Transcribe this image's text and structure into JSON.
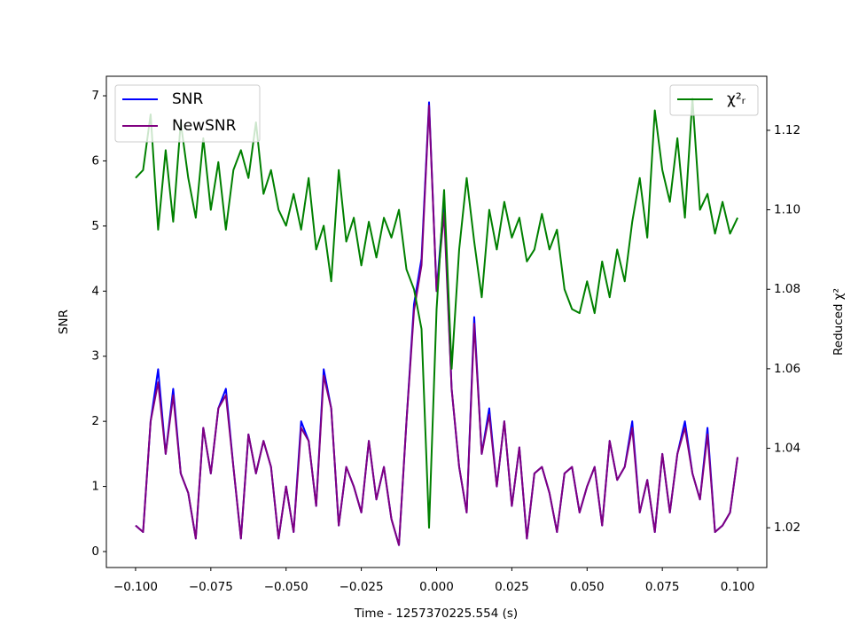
{
  "chart_data": {
    "type": "line",
    "xlabel": "Time - 1257370225.554 (s)",
    "ylabel": "SNR",
    "y2label": "Reduced χ²",
    "xlim": [
      -0.1097,
      0.1097
    ],
    "ylim": [
      -0.245,
      7.3
    ],
    "y2lim": [
      1.01,
      1.1336
    ],
    "xticks": [
      {
        "value": -0.1,
        "label": "−0.100"
      },
      {
        "value": -0.075,
        "label": "−0.075"
      },
      {
        "value": -0.05,
        "label": "−0.050"
      },
      {
        "value": -0.025,
        "label": "−0.025"
      },
      {
        "value": 0,
        "label": "0.000"
      },
      0.025,
      {
        "value": 0.05,
        "label": "0.050"
      },
      0.075,
      {
        "value": 0.1,
        "label": "0.100"
      }
    ],
    "yticks": [
      0,
      1,
      2,
      3,
      4,
      5,
      6,
      7
    ],
    "y2ticks": [
      1.02,
      1.04,
      1.06,
      1.08,
      {
        "value": 1.1,
        "label": "1.10"
      },
      1.12
    ],
    "legend": "upper left",
    "legend2": "upper right",
    "x": [
      -0.1,
      -0.0975,
      -0.095,
      -0.0925,
      -0.09,
      -0.0875,
      -0.085,
      -0.0825,
      -0.08,
      -0.0775,
      -0.075,
      -0.0725,
      -0.07,
      -0.0675,
      -0.065,
      -0.0625,
      -0.06,
      -0.0575,
      -0.055,
      -0.0525,
      -0.05,
      -0.0475,
      -0.045,
      -0.0425,
      -0.04,
      -0.0375,
      -0.035,
      -0.0325,
      -0.03,
      -0.0275,
      -0.025,
      -0.0225,
      -0.02,
      -0.0175,
      -0.015,
      -0.0125,
      -0.01,
      -0.0075,
      -0.005,
      -0.0025,
      0,
      0.0025,
      0.005,
      0.0075,
      0.01,
      0.0125,
      0.015,
      0.0175,
      0.02,
      0.0225,
      0.025,
      0.0275,
      0.03,
      0.0325,
      0.035,
      0.0375,
      0.04,
      0.0425,
      0.045,
      0.0475,
      0.05,
      0.0525,
      0.055,
      0.0575,
      0.06,
      0.0625,
      0.065,
      0.0675,
      0.07,
      0.0725,
      0.075,
      0.0775,
      0.08,
      0.0825,
      0.085,
      0.0875,
      0.09,
      0.0925,
      0.095,
      0.0975,
      0.1
    ],
    "series": [
      {
        "name": "SNR",
        "color": "#0000ff",
        "values": [
          0.4,
          0.3,
          2.0,
          2.8,
          1.5,
          2.5,
          1.2,
          0.9,
          0.2,
          1.9,
          1.2,
          2.2,
          2.5,
          1.3,
          0.2,
          1.8,
          1.2,
          1.7,
          1.3,
          0.2,
          1.0,
          0.3,
          2.0,
          1.7,
          0.7,
          2.8,
          2.2,
          0.4,
          1.3,
          1.0,
          0.6,
          1.7,
          0.8,
          1.3,
          0.5,
          0.1,
          2.0,
          3.8,
          4.5,
          6.9,
          4.0,
          5.4,
          2.5,
          1.3,
          0.6,
          3.6,
          1.5,
          2.2,
          1.0,
          2.0,
          0.7,
          1.6,
          0.2,
          1.2,
          1.3,
          0.9,
          0.3,
          1.2,
          1.3,
          0.6,
          1.0,
          1.3,
          0.4,
          1.7,
          1.1,
          1.3,
          2.0,
          0.6,
          1.1,
          0.3,
          1.5,
          0.6,
          1.5,
          2.0,
          1.2,
          0.8,
          1.9,
          0.3,
          0.4,
          0.6,
          1.45
        ]
      },
      {
        "name": "NewSNR",
        "color": "#800080",
        "values": [
          0.4,
          0.3,
          2.0,
          2.6,
          1.5,
          2.4,
          1.2,
          0.9,
          0.2,
          1.9,
          1.2,
          2.2,
          2.4,
          1.3,
          0.2,
          1.8,
          1.2,
          1.7,
          1.3,
          0.2,
          1.0,
          0.3,
          1.9,
          1.7,
          0.7,
          2.7,
          2.2,
          0.4,
          1.3,
          1.0,
          0.6,
          1.7,
          0.8,
          1.3,
          0.5,
          0.1,
          2.0,
          3.7,
          4.4,
          6.85,
          4.0,
          5.2,
          2.5,
          1.3,
          0.6,
          3.5,
          1.5,
          2.1,
          1.0,
          2.0,
          0.7,
          1.6,
          0.2,
          1.2,
          1.3,
          0.9,
          0.3,
          1.2,
          1.3,
          0.6,
          1.0,
          1.3,
          0.4,
          1.7,
          1.1,
          1.3,
          1.9,
          0.6,
          1.1,
          0.3,
          1.5,
          0.6,
          1.5,
          1.9,
          1.2,
          0.8,
          1.8,
          0.3,
          0.4,
          0.6,
          1.45
        ]
      },
      {
        "name": "χ²ᵣ",
        "color": "#008000",
        "axis": "y2",
        "values": [
          1.108,
          1.11,
          1.124,
          1.095,
          1.115,
          1.097,
          1.122,
          1.108,
          1.098,
          1.118,
          1.1,
          1.112,
          1.095,
          1.11,
          1.115,
          1.108,
          1.122,
          1.104,
          1.11,
          1.1,
          1.096,
          1.104,
          1.095,
          1.108,
          1.09,
          1.096,
          1.082,
          1.11,
          1.092,
          1.098,
          1.086,
          1.097,
          1.088,
          1.098,
          1.093,
          1.1,
          1.085,
          1.08,
          1.07,
          1.02,
          1.075,
          1.105,
          1.06,
          1.09,
          1.108,
          1.092,
          1.078,
          1.1,
          1.09,
          1.102,
          1.093,
          1.098,
          1.087,
          1.09,
          1.099,
          1.09,
          1.095,
          1.08,
          1.075,
          1.074,
          1.082,
          1.074,
          1.087,
          1.078,
          1.09,
          1.082,
          1.097,
          1.108,
          1.093,
          1.125,
          1.11,
          1.102,
          1.118,
          1.098,
          1.128,
          1.1,
          1.104,
          1.094,
          1.102,
          1.094,
          1.098
        ]
      }
    ]
  }
}
